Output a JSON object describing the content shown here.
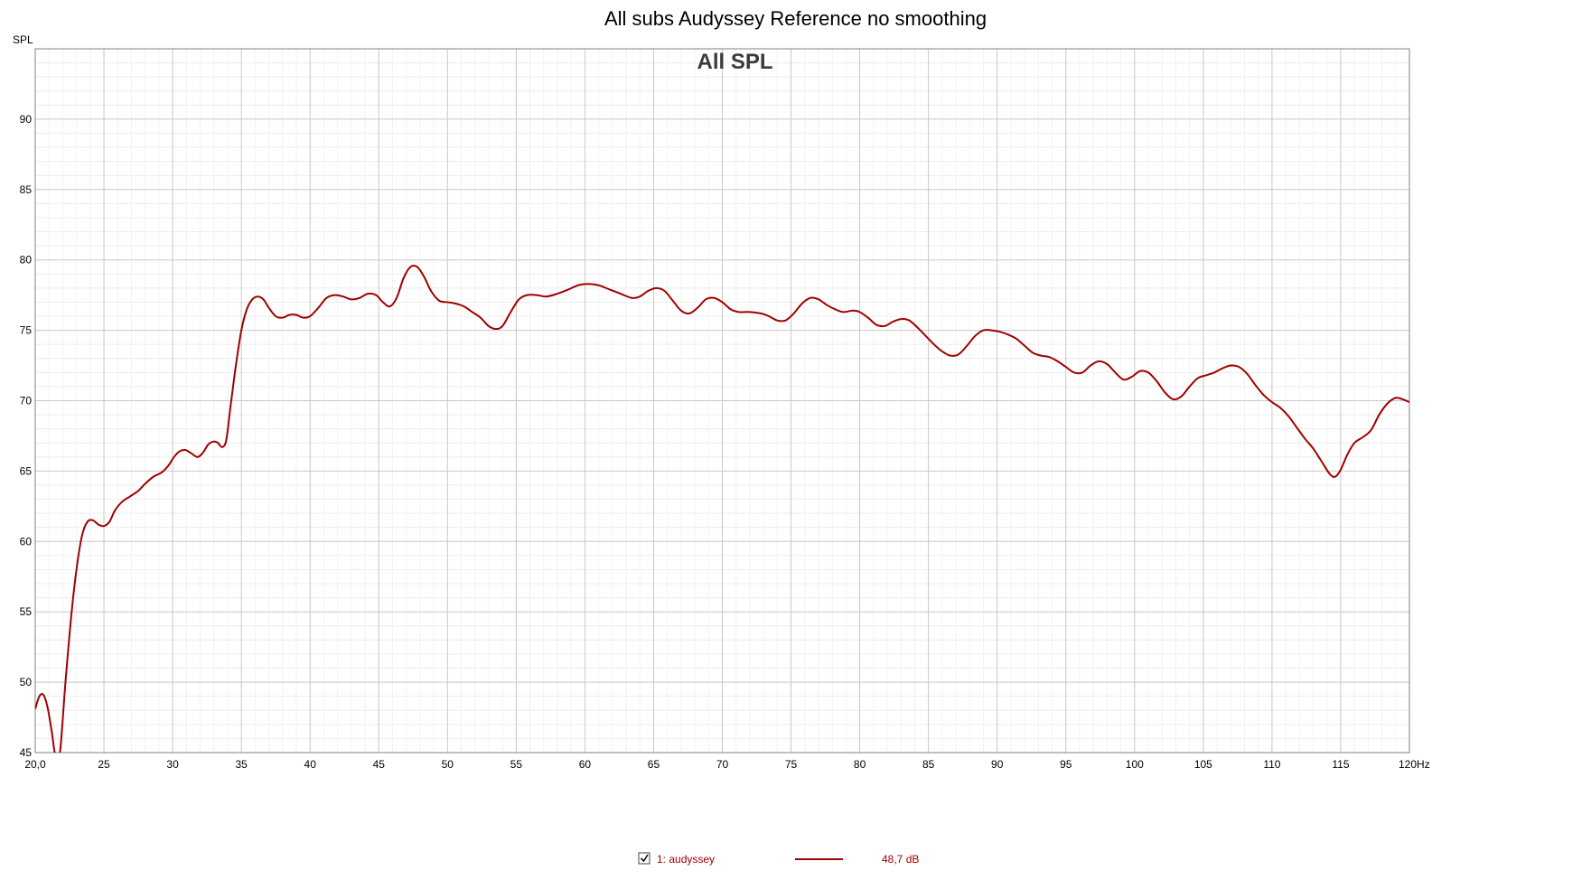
{
  "chart_data": {
    "type": "line",
    "title": "All subs Audyssey Reference no smoothing",
    "subtitle": "All SPL",
    "ylabel": "SPL",
    "xunit": "Hz",
    "xlim": [
      20,
      120
    ],
    "ylim": [
      45,
      95
    ],
    "x_ticks": [
      20,
      25,
      30,
      35,
      40,
      45,
      50,
      55,
      60,
      65,
      70,
      75,
      80,
      85,
      90,
      95,
      100,
      105,
      110,
      115,
      120
    ],
    "x_tick_labels": [
      "20,0",
      "25",
      "30",
      "35",
      "40",
      "45",
      "50",
      "55",
      "60",
      "65",
      "70",
      "75",
      "80",
      "85",
      "90",
      "95",
      "100",
      "105",
      "110",
      "115",
      "120Hz"
    ],
    "y_ticks": [
      45,
      50,
      55,
      60,
      65,
      70,
      75,
      80,
      85,
      90
    ],
    "grid": true,
    "legend_position": "bottom",
    "series": [
      {
        "name": "1: audyssey",
        "legend_value": "48,7 dB",
        "checked": true,
        "color": "#a00000",
        "points": [
          [
            20.0,
            48.1
          ],
          [
            20.3,
            49.0
          ],
          [
            20.6,
            49.1
          ],
          [
            20.9,
            48.2
          ],
          [
            21.2,
            46.5
          ],
          [
            21.5,
            44.6
          ],
          [
            21.8,
            45.0
          ],
          [
            22.2,
            50.0
          ],
          [
            22.6,
            54.5
          ],
          [
            23.0,
            58.0
          ],
          [
            23.4,
            60.4
          ],
          [
            23.8,
            61.4
          ],
          [
            24.2,
            61.5
          ],
          [
            24.6,
            61.2
          ],
          [
            25.0,
            61.1
          ],
          [
            25.4,
            61.4
          ],
          [
            25.8,
            62.2
          ],
          [
            26.3,
            62.8
          ],
          [
            26.9,
            63.2
          ],
          [
            27.5,
            63.6
          ],
          [
            28.0,
            64.1
          ],
          [
            28.6,
            64.6
          ],
          [
            29.2,
            64.9
          ],
          [
            29.7,
            65.4
          ],
          [
            30.1,
            66.0
          ],
          [
            30.5,
            66.4
          ],
          [
            30.9,
            66.5
          ],
          [
            31.3,
            66.3
          ],
          [
            31.8,
            66.0
          ],
          [
            32.2,
            66.3
          ],
          [
            32.6,
            66.9
          ],
          [
            33.0,
            67.1
          ],
          [
            33.3,
            67.0
          ],
          [
            33.6,
            66.7
          ],
          [
            33.9,
            67.2
          ],
          [
            34.2,
            69.5
          ],
          [
            34.6,
            72.5
          ],
          [
            35.0,
            75.0
          ],
          [
            35.4,
            76.5
          ],
          [
            35.8,
            77.2
          ],
          [
            36.2,
            77.4
          ],
          [
            36.6,
            77.2
          ],
          [
            37.0,
            76.6
          ],
          [
            37.5,
            76.0
          ],
          [
            38.0,
            75.9
          ],
          [
            38.5,
            76.1
          ],
          [
            39.0,
            76.1
          ],
          [
            39.5,
            75.9
          ],
          [
            40.0,
            76.0
          ],
          [
            40.6,
            76.6
          ],
          [
            41.2,
            77.3
          ],
          [
            41.8,
            77.5
          ],
          [
            42.4,
            77.4
          ],
          [
            43.0,
            77.2
          ],
          [
            43.6,
            77.3
          ],
          [
            44.2,
            77.6
          ],
          [
            44.8,
            77.5
          ],
          [
            45.3,
            77.0
          ],
          [
            45.8,
            76.7
          ],
          [
            46.3,
            77.3
          ],
          [
            46.8,
            78.7
          ],
          [
            47.3,
            79.5
          ],
          [
            47.8,
            79.5
          ],
          [
            48.3,
            78.8
          ],
          [
            48.8,
            77.8
          ],
          [
            49.4,
            77.1
          ],
          [
            50.0,
            77.0
          ],
          [
            50.6,
            76.9
          ],
          [
            51.2,
            76.7
          ],
          [
            51.8,
            76.3
          ],
          [
            52.4,
            75.9
          ],
          [
            53.0,
            75.3
          ],
          [
            53.5,
            75.1
          ],
          [
            54.0,
            75.3
          ],
          [
            54.6,
            76.3
          ],
          [
            55.2,
            77.2
          ],
          [
            55.8,
            77.5
          ],
          [
            56.5,
            77.5
          ],
          [
            57.2,
            77.4
          ],
          [
            58.0,
            77.6
          ],
          [
            58.8,
            77.9
          ],
          [
            59.5,
            78.2
          ],
          [
            60.2,
            78.3
          ],
          [
            61.0,
            78.2
          ],
          [
            61.8,
            77.9
          ],
          [
            62.6,
            77.6
          ],
          [
            63.4,
            77.3
          ],
          [
            64.0,
            77.4
          ],
          [
            64.6,
            77.8
          ],
          [
            65.2,
            78.0
          ],
          [
            65.8,
            77.8
          ],
          [
            66.4,
            77.1
          ],
          [
            67.0,
            76.4
          ],
          [
            67.6,
            76.2
          ],
          [
            68.2,
            76.6
          ],
          [
            68.8,
            77.2
          ],
          [
            69.4,
            77.3
          ],
          [
            70.0,
            77.0
          ],
          [
            70.6,
            76.5
          ],
          [
            71.2,
            76.3
          ],
          [
            72.0,
            76.3
          ],
          [
            72.8,
            76.2
          ],
          [
            73.4,
            76.0
          ],
          [
            74.0,
            75.7
          ],
          [
            74.6,
            75.7
          ],
          [
            75.2,
            76.2
          ],
          [
            75.8,
            76.9
          ],
          [
            76.4,
            77.3
          ],
          [
            77.0,
            77.2
          ],
          [
            77.6,
            76.8
          ],
          [
            78.2,
            76.5
          ],
          [
            78.8,
            76.3
          ],
          [
            79.5,
            76.4
          ],
          [
            80.0,
            76.3
          ],
          [
            80.6,
            75.9
          ],
          [
            81.2,
            75.4
          ],
          [
            81.8,
            75.3
          ],
          [
            82.4,
            75.6
          ],
          [
            83.0,
            75.8
          ],
          [
            83.6,
            75.7
          ],
          [
            84.2,
            75.2
          ],
          [
            84.8,
            74.6
          ],
          [
            85.4,
            74.0
          ],
          [
            86.0,
            73.5
          ],
          [
            86.6,
            73.2
          ],
          [
            87.2,
            73.3
          ],
          [
            87.8,
            73.9
          ],
          [
            88.4,
            74.6
          ],
          [
            89.0,
            75.0
          ],
          [
            89.6,
            75.0
          ],
          [
            90.2,
            74.9
          ],
          [
            90.8,
            74.7
          ],
          [
            91.4,
            74.4
          ],
          [
            92.0,
            73.9
          ],
          [
            92.6,
            73.4
          ],
          [
            93.2,
            73.2
          ],
          [
            93.8,
            73.1
          ],
          [
            94.4,
            72.8
          ],
          [
            95.0,
            72.4
          ],
          [
            95.6,
            72.0
          ],
          [
            96.2,
            72.0
          ],
          [
            96.8,
            72.5
          ],
          [
            97.4,
            72.8
          ],
          [
            98.0,
            72.6
          ],
          [
            98.6,
            72.0
          ],
          [
            99.2,
            71.5
          ],
          [
            99.8,
            71.7
          ],
          [
            100.4,
            72.1
          ],
          [
            101.0,
            72.0
          ],
          [
            101.6,
            71.4
          ],
          [
            102.2,
            70.6
          ],
          [
            102.8,
            70.1
          ],
          [
            103.4,
            70.3
          ],
          [
            104.0,
            71.0
          ],
          [
            104.6,
            71.6
          ],
          [
            105.2,
            71.8
          ],
          [
            105.8,
            72.0
          ],
          [
            106.4,
            72.3
          ],
          [
            107.0,
            72.5
          ],
          [
            107.6,
            72.4
          ],
          [
            108.2,
            71.9
          ],
          [
            108.8,
            71.1
          ],
          [
            109.4,
            70.4
          ],
          [
            110.0,
            69.9
          ],
          [
            110.6,
            69.5
          ],
          [
            111.2,
            68.9
          ],
          [
            111.8,
            68.1
          ],
          [
            112.4,
            67.3
          ],
          [
            113.0,
            66.6
          ],
          [
            113.6,
            65.7
          ],
          [
            114.2,
            64.8
          ],
          [
            114.6,
            64.6
          ],
          [
            115.0,
            65.1
          ],
          [
            115.5,
            66.2
          ],
          [
            116.0,
            67.0
          ],
          [
            116.6,
            67.4
          ],
          [
            117.2,
            67.9
          ],
          [
            117.8,
            69.0
          ],
          [
            118.4,
            69.8
          ],
          [
            119.0,
            70.2
          ],
          [
            119.5,
            70.1
          ],
          [
            120.0,
            69.9
          ]
        ]
      }
    ]
  }
}
